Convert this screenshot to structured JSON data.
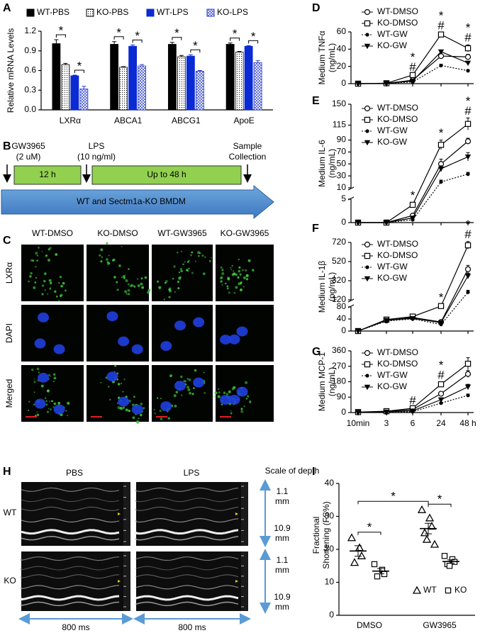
{
  "chart_data": [
    {
      "panel_label": "A",
      "type": "bar",
      "y_label": "Relative mRNA Levels",
      "categories": [
        "LXRα",
        "ABCA1",
        "ABCG1",
        "ApoE"
      ],
      "series": [
        {
          "name": "WT-PBS",
          "color": "#000000",
          "fill": "solid",
          "values": [
            1.01,
            1.0,
            1.0,
            1.0
          ],
          "errors": [
            0.06,
            0.04,
            0.03,
            0.02
          ]
        },
        {
          "name": "KO-PBS",
          "color": "#000000",
          "fill": "dots",
          "values": [
            0.69,
            0.65,
            0.81,
            0.88
          ],
          "errors": [
            0.02,
            0.01,
            0.02,
            0.01
          ]
        },
        {
          "name": "WT-LPS",
          "color": "#0a2ad4",
          "fill": "solid",
          "values": [
            0.52,
            0.97,
            0.82,
            0.97
          ],
          "errors": [
            0.01,
            0.02,
            0.02,
            0.01
          ]
        },
        {
          "name": "KO-LPS",
          "color": "#2b3fc8",
          "fill": "crosshatch",
          "values": [
            0.32,
            0.67,
            0.59,
            0.72
          ],
          "errors": [
            0.04,
            0.02,
            0.01,
            0.03
          ]
        }
      ],
      "ylim": [
        0,
        1.2
      ],
      "yticks": [
        {
          "value": 0,
          "label": "0.0"
        },
        0.3,
        0.6,
        0.9,
        1.2
      ],
      "significance": [
        [
          "*",
          "*"
        ],
        [
          "*",
          "*"
        ],
        [
          "*",
          "*"
        ],
        [
          "*",
          "*"
        ]
      ]
    },
    {
      "panel_label": "D",
      "type": "line",
      "y_label": [
        "Medium TNFα",
        "(ng/mL)"
      ],
      "categories": [
        null,
        null,
        null,
        null,
        null
      ],
      "series": [
        {
          "name": "WT-DMSO",
          "color": "#000000",
          "marker": "circle-open",
          "line_style": "solid",
          "values": [
            0,
            0.3,
            4,
            32,
            31
          ],
          "errors": [
            0,
            0,
            1,
            2,
            3
          ]
        },
        {
          "name": "KO-DMSO",
          "color": "#000000",
          "marker": "square-open",
          "line_style": "solid",
          "values": [
            0,
            0.5,
            10,
            57,
            41
          ],
          "errors": [
            0,
            0,
            1,
            2,
            4
          ]
        },
        {
          "name": "WT-GW",
          "color": "#000000",
          "marker": "circle",
          "line_style": "dotted",
          "values": [
            0,
            0.2,
            2,
            21,
            15
          ],
          "errors": [
            0,
            0,
            0.5,
            1.5,
            1
          ]
        },
        {
          "name": "KO-GW",
          "color": "#000000",
          "marker": "triangle-down",
          "line_style": "solid",
          "values": [
            0,
            0.3,
            3,
            37,
            24
          ],
          "errors": [
            0,
            0,
            0.5,
            1.5,
            1.5
          ]
        }
      ],
      "ylim": [
        0,
        60
      ],
      "yticks": [
        0,
        20,
        40,
        60
      ],
      "significance": [
        null,
        null,
        [
          "*",
          "#"
        ],
        [
          "*",
          "#"
        ],
        [
          "*",
          "#"
        ]
      ]
    },
    {
      "panel_label": "E",
      "type": "line",
      "y_label": [
        "Medium IL-6",
        "(ng/mL)"
      ],
      "categories": [
        null,
        null,
        null,
        null,
        null
      ],
      "series": [
        {
          "name": "WT-DMSO",
          "color": "#000000",
          "marker": "circle-open",
          "line_style": "solid",
          "values": [
            0,
            0,
            1.5,
            50,
            88
          ],
          "errors": [
            0,
            0,
            0.3,
            8,
            5
          ]
        },
        {
          "name": "KO-DMSO",
          "color": "#000000",
          "marker": "square-open",
          "line_style": "solid",
          "values": [
            0,
            0,
            3.8,
            82,
            117
          ],
          "errors": [
            0,
            0,
            0.5,
            8,
            10
          ]
        },
        {
          "name": "WT-GW",
          "color": "#000000",
          "marker": "circle",
          "line_style": "dotted",
          "values": [
            0,
            0,
            0.6,
            20,
            33
          ],
          "errors": [
            0,
            0,
            0.2,
            3,
            3
          ]
        },
        {
          "name": "KO-GW",
          "color": "#000000",
          "marker": "triangle-down",
          "line_style": "solid",
          "values": [
            0,
            0,
            1,
            42,
            62
          ],
          "errors": [
            0,
            0,
            0.2,
            5,
            7
          ]
        }
      ],
      "ylim": [
        0,
        150
      ],
      "ybreak": [
        5,
        10
      ],
      "yticks": [
        0,
        5,
        10,
        30,
        50,
        70,
        90,
        115,
        150
      ],
      "significance": [
        null,
        null,
        [
          "*"
        ],
        [
          "*"
        ],
        [
          "*",
          "#"
        ]
      ]
    },
    {
      "panel_label": "F",
      "type": "line",
      "y_label": [
        "Medium IL-1β",
        "(pg/mL)"
      ],
      "categories": [
        null,
        null,
        null,
        null,
        null
      ],
      "series": [
        {
          "name": "WT-DMSO",
          "color": "#000000",
          "marker": "circle-open",
          "line_style": "solid",
          "values": [
            0,
            35,
            45,
            30,
            440
          ],
          "errors": [
            0,
            3,
            4,
            5,
            40
          ]
        },
        {
          "name": "KO-DMSO",
          "color": "#000000",
          "marker": "square-open",
          "line_style": "solid",
          "values": [
            0,
            38,
            48,
            85,
            690
          ],
          "errors": [
            0,
            3,
            4,
            8,
            40
          ]
        },
        {
          "name": "WT-GW",
          "color": "#000000",
          "marker": "circle",
          "line_style": "dotted",
          "values": [
            0,
            33,
            40,
            22,
            200
          ],
          "errors": [
            0,
            2,
            3,
            4,
            20
          ]
        },
        {
          "name": "KO-GW",
          "color": "#000000",
          "marker": "triangle-down",
          "line_style": "solid",
          "values": [
            0,
            36,
            42,
            28,
            370
          ],
          "errors": [
            0,
            3,
            3,
            4,
            30
          ]
        }
      ],
      "ylim": [
        0,
        720
      ],
      "ybreak": [
        80,
        120
      ],
      "yticks": [
        0,
        40,
        80,
        120,
        320,
        520,
        720
      ],
      "significance": [
        null,
        null,
        null,
        [
          "*"
        ],
        [
          "*",
          "#"
        ]
      ]
    },
    {
      "panel_label": "G",
      "type": "line",
      "y_label": [
        "Medium MCP-1",
        "(ng/mL)"
      ],
      "categories": [
        "10min",
        "3",
        "6",
        "24",
        "48 h"
      ],
      "series": [
        {
          "name": "WT-DMSO",
          "color": "#000000",
          "marker": "circle-open",
          "line_style": "solid",
          "values": [
            2,
            5,
            18,
            110,
            225
          ],
          "errors": [
            1,
            1,
            3,
            10,
            20
          ]
        },
        {
          "name": "KO-DMSO",
          "color": "#000000",
          "marker": "square-open",
          "line_style": "solid",
          "values": [
            3,
            8,
            25,
            165,
            285
          ],
          "errors": [
            1,
            1,
            4,
            12,
            35
          ]
        },
        {
          "name": "WT-GW",
          "color": "#000000",
          "marker": "circle",
          "line_style": "dotted",
          "values": [
            1,
            3,
            5,
            55,
            100
          ],
          "errors": [
            0,
            1,
            1,
            5,
            8
          ]
        },
        {
          "name": "KO-GW",
          "color": "#000000",
          "marker": "triangle-down",
          "line_style": "solid",
          "values": [
            2,
            4,
            10,
            75,
            150
          ],
          "errors": [
            1,
            1,
            2,
            6,
            15
          ]
        }
      ],
      "ylim": [
        0,
        360
      ],
      "yticks": [
        0,
        90,
        180,
        270,
        360
      ],
      "significance": [
        null,
        null,
        [
          "#"
        ],
        [
          "*",
          "#"
        ],
        null
      ]
    },
    {
      "panel_label": "I",
      "type": "scatter",
      "y_label": [
        "Fractional",
        "Shortening (FS%)"
      ],
      "categories": [
        "DMSO",
        "GW3965"
      ],
      "series": [
        {
          "name": "WT",
          "color": "#000000",
          "marker": "triangle-open",
          "values": [
            [
              23.5,
              20.5,
              18,
              16
            ],
            [
              32,
              29.5,
              27,
              25,
              23,
              21.5
            ]
          ],
          "mean": [
            19.5,
            26.3
          ],
          "sem": [
            1.6,
            1.6
          ]
        },
        {
          "name": "KO",
          "color": "#000000",
          "marker": "square-open",
          "values": [
            [
              15.5,
              13.8,
              12.5,
              11.8
            ],
            [
              18,
              17,
              16.2,
              15.5,
              15
            ]
          ],
          "mean": [
            13.4,
            16.3
          ],
          "sem": [
            0.8,
            0.5
          ]
        }
      ],
      "ylim": [
        0,
        40
      ],
      "yticks": [
        0,
        10,
        20,
        30,
        40
      ],
      "significance": [
        "*",
        "*",
        "*"
      ]
    }
  ],
  "diagram": {
    "panel_label": "B",
    "steps": [
      {
        "label": "GW3965",
        "detail": "(2 uM)"
      },
      {
        "label": "LPS",
        "detail": "(10 ng/ml)"
      },
      {
        "label": "Sample",
        "detail": "Collection"
      }
    ],
    "periods": [
      "12 h",
      "Up to 48 h"
    ],
    "cells": "WT and Sectm1a-KO BMDM"
  },
  "micrographs": {
    "panel_label": "C",
    "columns": [
      "WT-DMSO",
      "KO-DMSO",
      "WT-GW3965",
      "KO-GW3965"
    ],
    "rows": [
      "LXRα",
      "DAPI",
      "Merged"
    ]
  },
  "echocardiography": {
    "panel_label": "H",
    "columns": [
      "PBS",
      "LPS"
    ],
    "rows": [
      "WT",
      "KO"
    ],
    "scale_title": "Scale of depth",
    "depth_labels": [
      [
        "1.1",
        "mm"
      ],
      [
        "10.9",
        "mm"
      ]
    ],
    "time_labels": [
      "800 ms",
      "800 ms"
    ]
  }
}
